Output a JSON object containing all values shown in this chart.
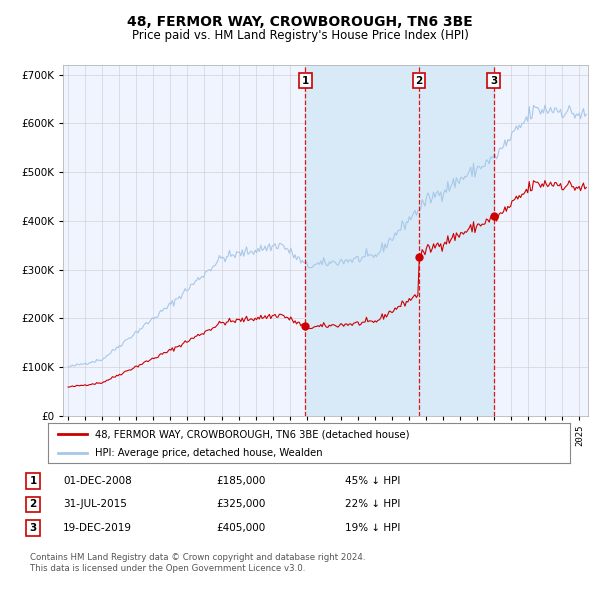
{
  "title": "48, FERMOR WAY, CROWBOROUGH, TN6 3BE",
  "subtitle": "Price paid vs. HM Land Registry's House Price Index (HPI)",
  "legend_entry1": "48, FERMOR WAY, CROWBOROUGH, TN6 3BE (detached house)",
  "legend_entry2": "HPI: Average price, detached house, Wealden",
  "purchases": [
    {
      "label": "1",
      "date": "01-DEC-2008",
      "price": 185000,
      "note": "45% ↓ HPI",
      "x_year": 2008.92
    },
    {
      "label": "2",
      "date": "31-JUL-2015",
      "price": 325000,
      "note": "22% ↓ HPI",
      "x_year": 2015.58
    },
    {
      "label": "3",
      "date": "19-DEC-2019",
      "price": 405000,
      "note": "19% ↓ HPI",
      "x_year": 2019.96
    }
  ],
  "footer1": "Contains HM Land Registry data © Crown copyright and database right 2024.",
  "footer2": "This data is licensed under the Open Government Licence v3.0.",
  "hpi_color": "#a8c8e8",
  "price_color": "#cc0000",
  "background_color": "#ffffff",
  "plot_bg_color": "#f0f4ff",
  "shade_color": "#d8eaf8",
  "ylim": [
    0,
    720000
  ],
  "xlim_start": 1994.7,
  "xlim_end": 2025.5
}
